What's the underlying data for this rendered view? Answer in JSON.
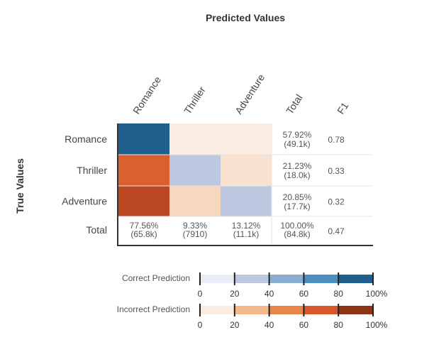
{
  "chart_data": {
    "type": "heatmap",
    "title": "Predicted Values",
    "ylabel": "True Values",
    "columns": [
      "Romance",
      "Thriller",
      "Adventure",
      "Total",
      "F1"
    ],
    "classes": [
      "Romance",
      "Thriller",
      "Adventure"
    ],
    "rows": [
      {
        "label": "Romance",
        "total_pct": "57.92%",
        "total_count": "(49.1k)",
        "f1": "0.78",
        "cell_percent": [
          100,
          0,
          0
        ]
      },
      {
        "label": "Thriller",
        "total_pct": "21.23%",
        "total_count": "(18.0k)",
        "f1": "0.33",
        "cell_percent": [
          70,
          25,
          5
        ]
      },
      {
        "label": "Adventure",
        "total_pct": "20.85%",
        "total_count": "(17.7k)",
        "f1": "0.32",
        "cell_percent": [
          85,
          10,
          25
        ]
      }
    ],
    "total_row": {
      "label": "Total",
      "values": [
        {
          "pct": "77.56%",
          "count": "(65.8k)"
        },
        {
          "pct": "9.33%",
          "count": "(7910)"
        },
        {
          "pct": "13.12%",
          "count": "(11.1k)"
        },
        {
          "pct": "100.00%",
          "count": "(84.8k)"
        }
      ],
      "f1": "0.47"
    },
    "legends": [
      {
        "label": "Correct Prediction",
        "scale": "blue",
        "colors": [
          "#eaedf5",
          "#bcc8e0",
          "#8aaed2",
          "#4a8fbf",
          "#1f5f8b"
        ]
      },
      {
        "label": "Incorrect Prediction",
        "scale": "orange",
        "colors": [
          "#faece0",
          "#f2b98c",
          "#e8864a",
          "#d9552a",
          "#8e3418"
        ]
      }
    ],
    "legend_ticks": [
      "0",
      "20",
      "40",
      "60",
      "80",
      "100%"
    ]
  }
}
